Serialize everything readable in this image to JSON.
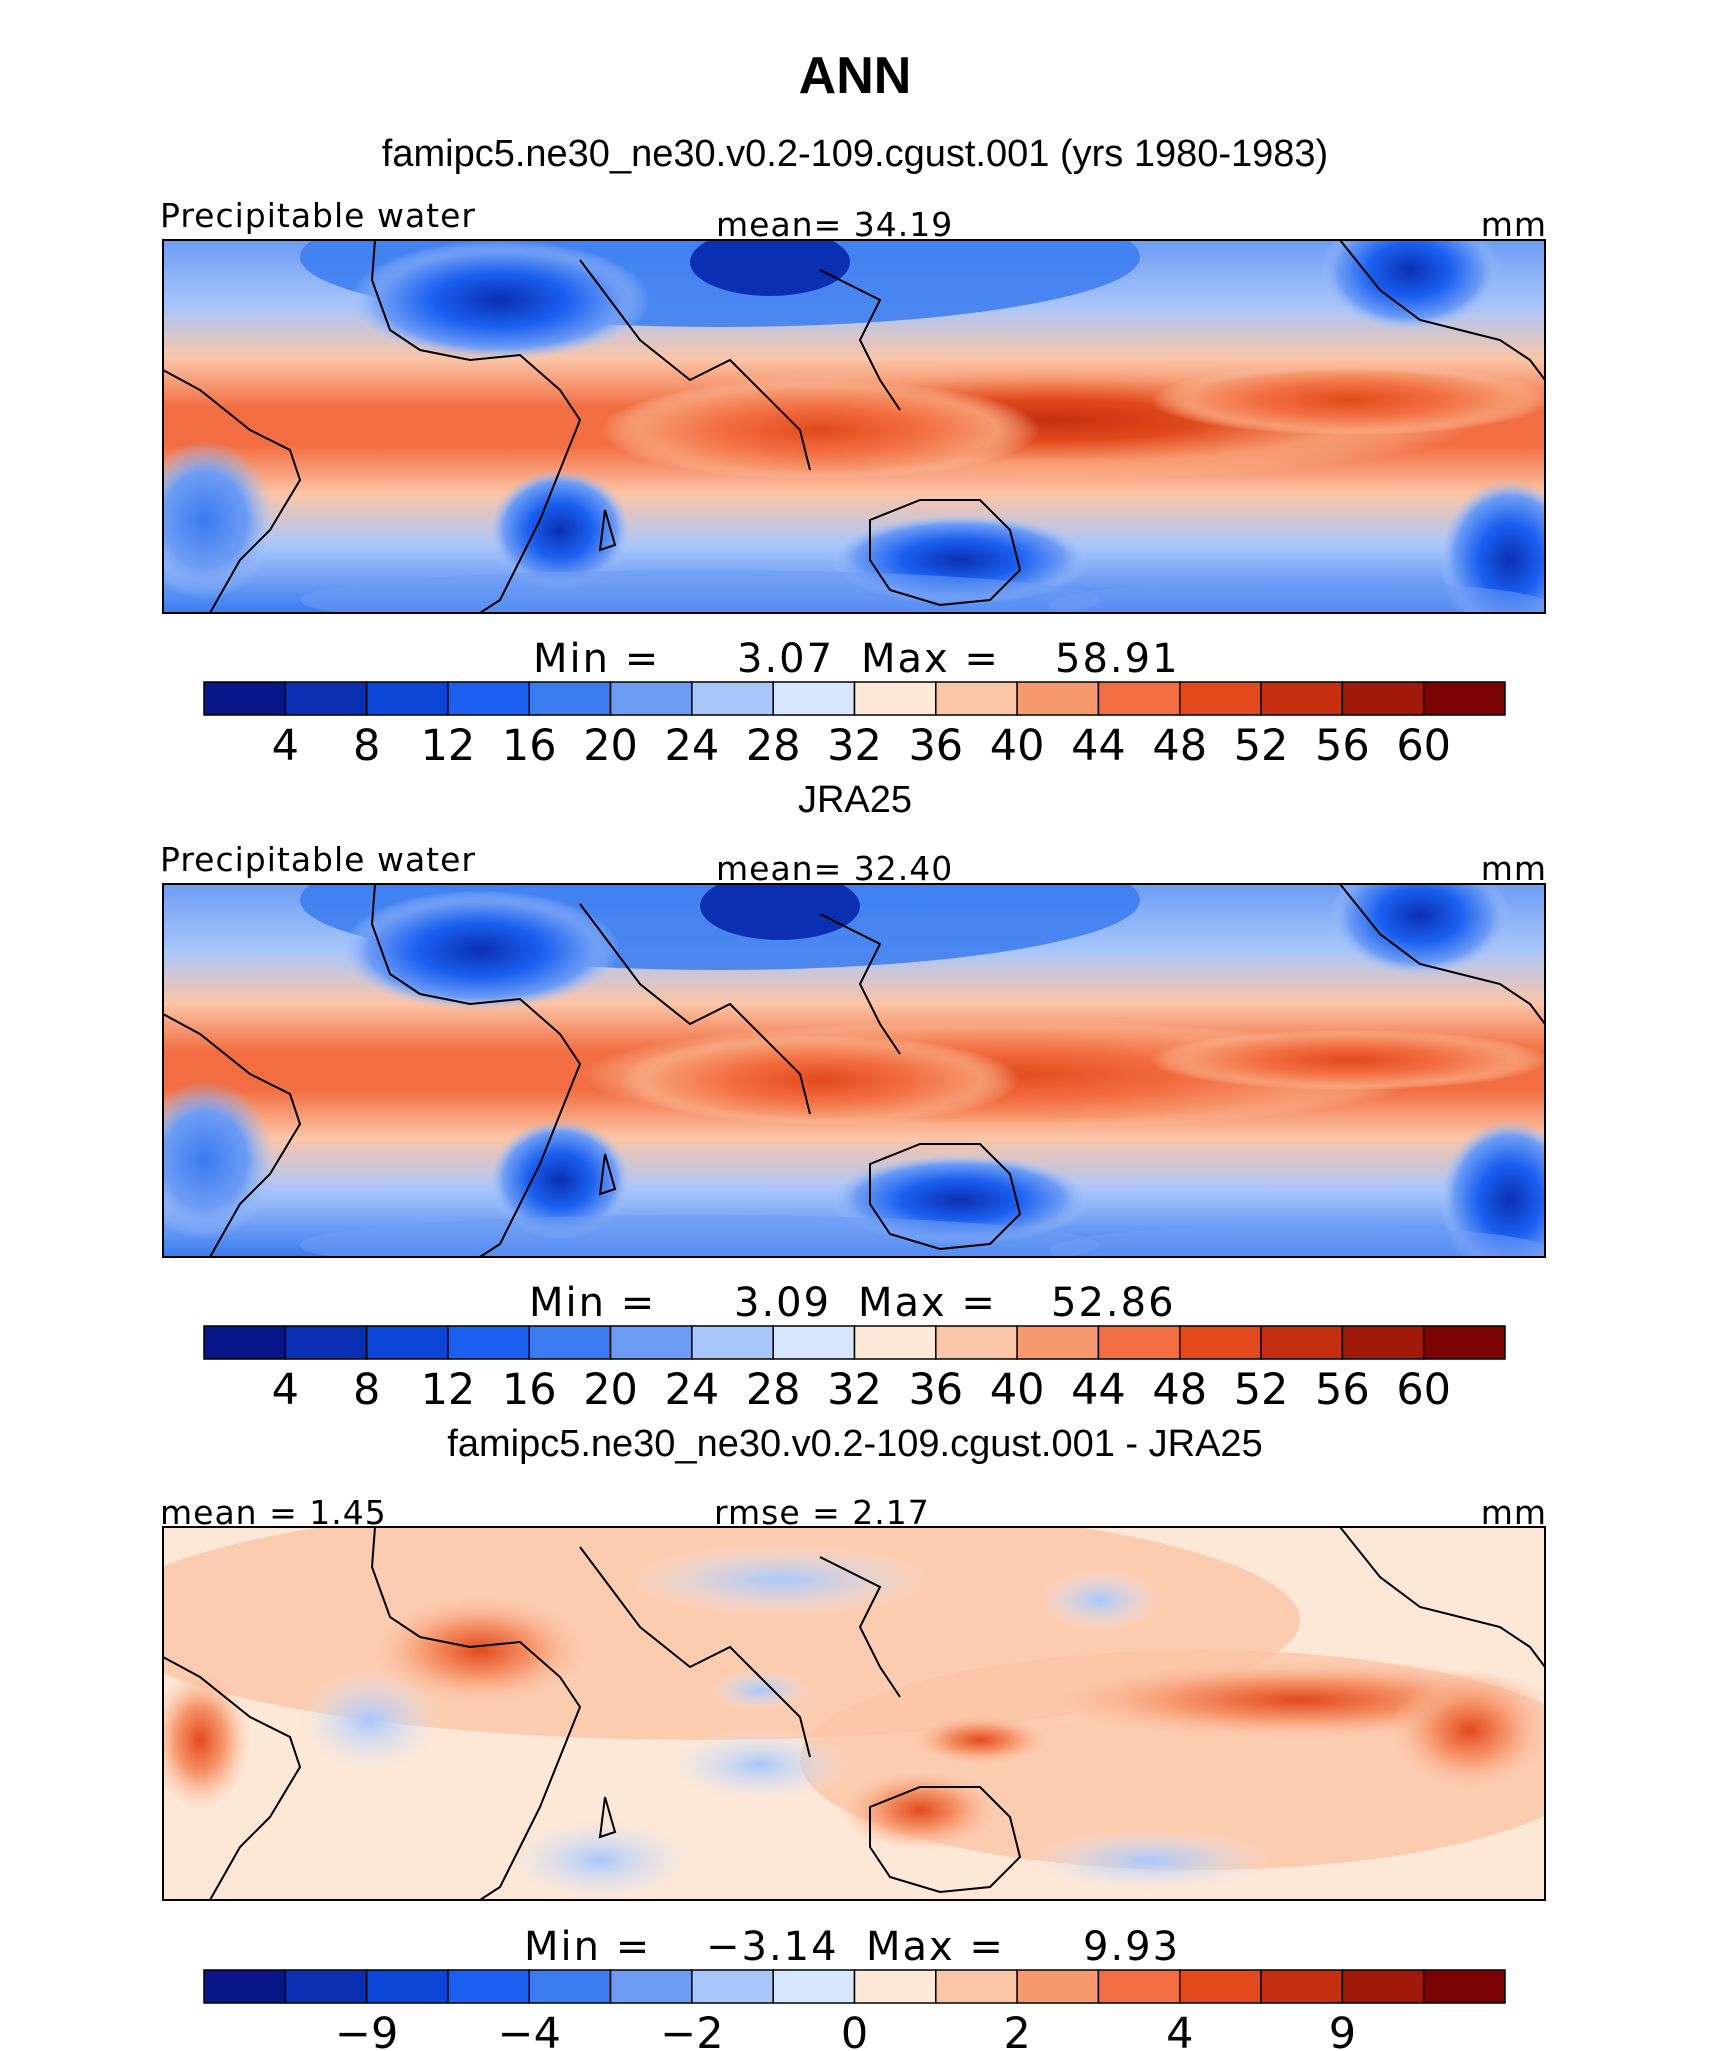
{
  "title": "ANN",
  "chart_data": [
    {
      "type": "heatmap",
      "title": "famipc5.ne30_ne30.v0.2-109.cgust.001 (yrs 1980-1983)",
      "left_label": "Precipitable water",
      "center_label": "mean=   34.19",
      "units": "mm",
      "mean": 34.19,
      "min": 3.07,
      "max": 58.91,
      "stats_text": {
        "min_label": "Min  =",
        "min_value": "3.07",
        "max_label": "Max  =",
        "max_value": "58.91"
      },
      "colorbar": {
        "levels": [
          4,
          8,
          12,
          16,
          20,
          24,
          28,
          32,
          36,
          40,
          44,
          48,
          52,
          56,
          60
        ],
        "tick_labels": [
          "4",
          "8",
          "12",
          "16",
          "20",
          "24",
          "28",
          "32",
          "36",
          "40",
          "44",
          "48",
          "52",
          "56",
          "60"
        ]
      }
    },
    {
      "type": "heatmap",
      "title": "JRA25",
      "left_label": "Precipitable water",
      "center_label": "mean=   32.40",
      "units": "mm",
      "mean": 32.4,
      "min": 3.09,
      "max": 52.86,
      "stats_text": {
        "min_label": "Min  =",
        "min_value": "3.09",
        "max_label": "Max  =",
        "max_value": "52.86"
      },
      "colorbar": {
        "levels": [
          4,
          8,
          12,
          16,
          20,
          24,
          28,
          32,
          36,
          40,
          44,
          48,
          52,
          56,
          60
        ],
        "tick_labels": [
          "4",
          "8",
          "12",
          "16",
          "20",
          "24",
          "28",
          "32",
          "36",
          "40",
          "44",
          "48",
          "52",
          "56",
          "60"
        ]
      }
    },
    {
      "type": "heatmap",
      "title": "famipc5.ne30_ne30.v0.2-109.cgust.001 - JRA25",
      "left_label": "mean  =    1.45",
      "center_label": "rmse  =    2.17",
      "units": "mm",
      "mean": 1.45,
      "rmse": 2.17,
      "min": -3.14,
      "max": 9.93,
      "stats_text": {
        "min_label": "Min  =",
        "min_value": "−3.14",
        "max_label": "Max  =",
        "max_value": "9.93"
      },
      "colorbar": {
        "levels": [
          -9,
          -6,
          -4,
          -3,
          -2,
          -1,
          0,
          1,
          2,
          3,
          4,
          6,
          9
        ],
        "tick_labels": [
          "−9",
          "−4",
          "−2",
          "0",
          "2",
          "4",
          "9"
        ]
      }
    }
  ],
  "colors": [
    "#08168a",
    "#0a2fb3",
    "#0c46d6",
    "#1a5ff0",
    "#3a7bf0",
    "#6d9cf5",
    "#a9c6fa",
    "#d7e7fd",
    "#fde7d6",
    "#fbc5a7",
    "#f7996f",
    "#f26d41",
    "#e24a1c",
    "#c52f10",
    "#a11909",
    "#7c0303"
  ]
}
